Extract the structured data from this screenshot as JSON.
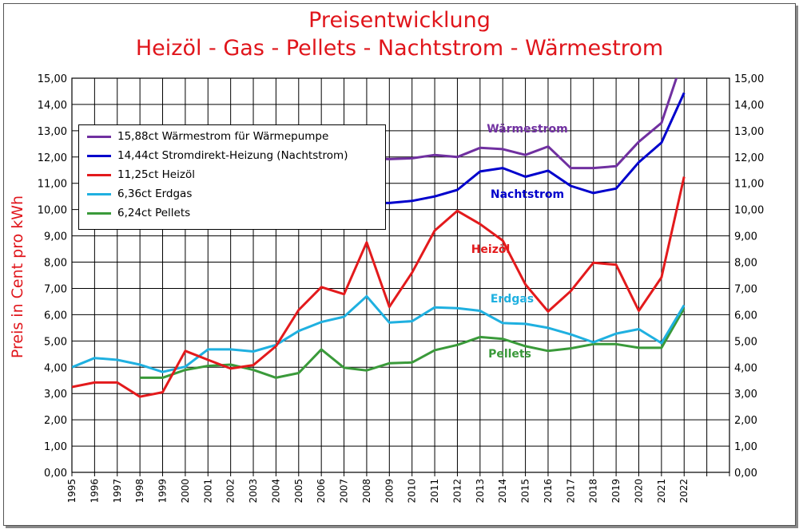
{
  "title_line1": "Preisentwicklung",
  "title_line2": "Heizöl - Gas - Pellets - Nachtstrom - Wärmestrom",
  "colors": {
    "title": "#e0151b",
    "waermestrom": "#7030a0",
    "nachtstrom": "#0000cc",
    "heizoel": "#e31a1c",
    "erdgas": "#1fb0e0",
    "pellets": "#3a9a3a"
  },
  "legend": [
    {
      "key": "waermestrom",
      "label": "15,88ct Wärmestrom für Wärmepumpe"
    },
    {
      "key": "nachtstrom",
      "label": "14,44ct Stromdirekt-Heizung (Nachtstrom)"
    },
    {
      "key": "heizoel",
      "label": "11,25ct Heizöl"
    },
    {
      "key": "erdgas",
      "label": "6,36ct Erdgas"
    },
    {
      "key": "pellets",
      "label": "6,24ct Pellets"
    }
  ],
  "chart_data": {
    "type": "line",
    "title": "Preisentwicklung Heizöl - Gas - Pellets - Nachtstrom - Wärmestrom",
    "xlabel": "",
    "ylabel": "Preis in Cent pro kWh",
    "ylim": [
      0,
      15
    ],
    "grid": true,
    "legend_position": "top-left",
    "secondary_y_axis": true,
    "x": [
      "1995",
      "1996",
      "1997",
      "1998",
      "1999",
      "2000",
      "2001",
      "2002",
      "2003",
      "2004",
      "2005",
      "2006",
      "2007",
      "2008",
      "2009",
      "2010",
      "2011",
      "2012",
      "2013",
      "2014",
      "2015",
      "2016",
      "2017",
      "2018",
      "2019",
      "2020",
      "2021",
      "2022"
    ],
    "y_ticks": [
      "0,00",
      "1,00",
      "2,00",
      "3,00",
      "4,00",
      "5,00",
      "6,00",
      "7,00",
      "8,00",
      "9,00",
      "10,00",
      "11,00",
      "12,00",
      "13,00",
      "14,00",
      "15,00"
    ],
    "series": [
      {
        "key": "waermestrom",
        "name": "15,88ct Wärmestrom für Wärmepumpe",
        "annotation": "Wärmestrom",
        "values": [
          null,
          null,
          null,
          null,
          null,
          null,
          null,
          null,
          null,
          null,
          null,
          null,
          null,
          11.95,
          11.92,
          11.95,
          12.08,
          12.0,
          12.35,
          12.3,
          12.08,
          12.4,
          11.58,
          11.58,
          11.65,
          12.58,
          13.3,
          15.88
        ]
      },
      {
        "key": "nachtstrom",
        "name": "14,44ct Stromdirekt-Heizung (Nachtstrom)",
        "annotation": "Nachtstrom",
        "values": [
          null,
          null,
          null,
          null,
          null,
          null,
          null,
          null,
          null,
          null,
          null,
          null,
          null,
          10.25,
          10.25,
          10.33,
          10.5,
          10.75,
          11.45,
          11.58,
          11.25,
          11.48,
          10.9,
          10.63,
          10.8,
          11.8,
          12.55,
          14.44
        ]
      },
      {
        "key": "heizoel",
        "name": "11,25ct Heizöl",
        "annotation": "Heizöl",
        "values": [
          3.25,
          3.42,
          3.42,
          2.88,
          3.05,
          4.62,
          4.28,
          3.95,
          4.08,
          4.8,
          6.18,
          7.05,
          6.78,
          8.75,
          6.3,
          7.6,
          9.2,
          9.95,
          9.45,
          8.82,
          7.15,
          6.12,
          6.9,
          7.98,
          7.9,
          6.15,
          7.42,
          11.25
        ]
      },
      {
        "key": "erdgas",
        "name": "6,36ct Erdgas",
        "annotation": "Erdgas",
        "values": [
          4.0,
          4.35,
          4.28,
          4.1,
          3.82,
          4.02,
          4.68,
          4.68,
          4.6,
          4.85,
          5.38,
          5.72,
          5.92,
          6.7,
          5.7,
          5.75,
          6.28,
          6.25,
          6.15,
          5.68,
          5.65,
          5.5,
          5.25,
          4.95,
          5.28,
          5.45,
          4.92,
          6.36
        ]
      },
      {
        "key": "pellets",
        "name": "6,24ct Pellets",
        "annotation": "Pellets",
        "values": [
          null,
          null,
          null,
          3.6,
          3.6,
          3.9,
          4.05,
          4.1,
          3.9,
          3.6,
          3.78,
          4.68,
          3.98,
          3.88,
          4.15,
          4.18,
          4.65,
          4.85,
          5.15,
          5.08,
          4.8,
          4.62,
          4.72,
          4.88,
          4.88,
          4.74,
          4.74,
          6.24
        ]
      }
    ]
  }
}
